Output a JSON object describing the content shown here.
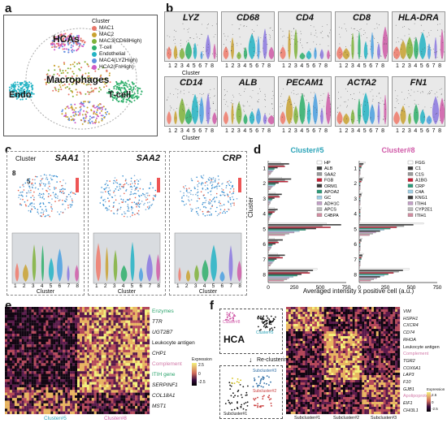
{
  "panels": {
    "a": {
      "label": "a",
      "legend_title": "Cluster",
      "legend": [
        {
          "name": "MAC1",
          "color": "#e8776a"
        },
        {
          "name": "MAC2",
          "color": "#c9a230"
        },
        {
          "name": "MAC3(CD68High)",
          "color": "#7fb23a"
        },
        {
          "name": "T-cell",
          "color": "#2eaf6a"
        },
        {
          "name": "Endothelial",
          "color": "#23b3c4"
        },
        {
          "name": "MAC4(LYZHigh)",
          "color": "#5f8fe0"
        },
        {
          "name": "HCA2(FnHigh)",
          "color": "#d05ac8"
        }
      ],
      "regions": {
        "hcas": "HCAs",
        "macrophages": "Macrophages",
        "endo": "Endo",
        "tcell": "T-cell"
      }
    },
    "b": {
      "label": "b",
      "genes_row1": [
        "LYZ",
        "CD68",
        "CD4",
        "CD8",
        "HLA-DRA"
      ],
      "genes_row2": [
        "CD14",
        "ALB",
        "PECAM1",
        "ACTA2",
        "FN1"
      ],
      "xticks": [
        "1",
        "2",
        "3",
        "4",
        "5",
        "6",
        "7",
        "8"
      ],
      "xlabel": "Cluster"
    },
    "c": {
      "label": "c",
      "genes": [
        "SAA1",
        "SAA2",
        "CRP"
      ],
      "cluster_title": "Cluster",
      "markers": [
        "8",
        "5"
      ],
      "xticks": [
        "1",
        "2",
        "3",
        "4",
        "5",
        "6",
        "7",
        "8"
      ],
      "xlabel": "Cluster"
    },
    "d": {
      "label": "d",
      "ylabel": "Cluster",
      "xlabel": "Averaged intensity x positive cell (a.u.)",
      "colors": [
        "#ffffff",
        "#3a3a3a",
        "#999999",
        "#c91f36",
        "#3a3a3a",
        "#2a9a78",
        "#9fcfe6",
        "#c3a0c7",
        "#bbbbbb",
        "#3b3b3b",
        "#cccccc",
        "#d28ca0"
      ]
    },
    "e": {
      "label": "e",
      "left_col": "Cluster#5",
      "right_col": "Cluster#8",
      "row_labels": [
        {
          "text": "Enzymes",
          "color": "#2aa36b",
          "italic": false
        },
        {
          "text": "TTR",
          "color": "#111",
          "italic": true
        },
        {
          "text": "UGT2B7",
          "color": "#111",
          "italic": true
        },
        {
          "text": "Leukocyte antigen",
          "color": "#111",
          "italic": false
        },
        {
          "text": "CHP1",
          "color": "#111",
          "italic": true
        },
        {
          "text": "Complement",
          "color": "#d27aa8",
          "italic": false
        },
        {
          "text": "ITIH gene",
          "color": "#2aa36b",
          "italic": false
        },
        {
          "text": "SERPINF1",
          "color": "#111",
          "italic": true
        },
        {
          "text": "COL18A1",
          "color": "#111",
          "italic": true
        },
        {
          "text": "MST1",
          "color": "#111",
          "italic": true
        }
      ],
      "legend_title": "Expression",
      "legend_ticks": [
        "2.5",
        "0",
        "-2.5"
      ]
    },
    "f": {
      "label": "f",
      "hca": "HCA",
      "cluster5": "Cluster#5",
      "cluster8": "Cluster#8",
      "arrow_text": "Re-clustering",
      "sub1": "Subcluster#1",
      "sub2": "Subcluster#2",
      "sub3": "Subcluster#3",
      "cols": [
        "Subcluster#1",
        "Subcluster#2",
        "Subcluster#3"
      ],
      "row_labels": [
        {
          "text": "VIM",
          "color": "#111",
          "italic": true
        },
        {
          "text": "HSPH1",
          "color": "#111",
          "italic": true
        },
        {
          "text": "CXCR4",
          "color": "#111",
          "italic": true
        },
        {
          "text": "CD74",
          "color": "#111",
          "italic": true
        },
        {
          "text": "RHOA",
          "color": "#111",
          "italic": true
        },
        {
          "text": "Leukocyte antigen",
          "color": "#111",
          "italic": false
        },
        {
          "text": "Complement",
          "color": "#d27aa8",
          "italic": false
        },
        {
          "text": "TGR2",
          "color": "#111",
          "italic": true
        },
        {
          "text": "COX6A1",
          "color": "#111",
          "italic": true
        },
        {
          "text": "LAP3",
          "color": "#111",
          "italic": true
        },
        {
          "text": "F10",
          "color": "#111",
          "italic": true
        },
        {
          "text": "GJB1",
          "color": "#111",
          "italic": true
        },
        {
          "text": "Apolipoprotein",
          "color": "#d27aa8",
          "italic": false
        },
        {
          "text": "EIF1",
          "color": "#111",
          "italic": true
        },
        {
          "text": "CHI3L1",
          "color": "#111",
          "italic": true
        }
      ],
      "legend_title": "Expression",
      "legend_ticks": [
        "2.5",
        "0",
        "-2.5"
      ]
    }
  },
  "chart_data": [
    {
      "type": "bar",
      "title": "Cluster#5",
      "title_color": "#2aa3b8",
      "orientation": "horizontal",
      "ylabel": "Cluster",
      "xlabel": "Averaged intensity x positive cell (a.u.)",
      "categories": [
        "1",
        "2",
        "3",
        "4",
        "5",
        "6",
        "7",
        "8"
      ],
      "xlim": [
        0,
        750
      ],
      "xticks": [
        "0",
        "250",
        "500",
        "750"
      ],
      "series": [
        {
          "name": "HP",
          "values": [
            120,
            130,
            70,
            60,
            560,
            60,
            90,
            470
          ],
          "color": "#ffffff"
        },
        {
          "name": "ALB",
          "values": [
            200,
            220,
            130,
            90,
            700,
            140,
            160,
            430
          ],
          "color": "#3a3a3a"
        },
        {
          "name": "SAA2",
          "values": [
            150,
            160,
            100,
            70,
            520,
            90,
            110,
            380
          ],
          "color": "#999999"
        },
        {
          "name": "FGB",
          "values": [
            160,
            190,
            110,
            60,
            600,
            100,
            140,
            400
          ],
          "color": "#c91f36"
        },
        {
          "name": "ORM1",
          "values": [
            90,
            100,
            60,
            40,
            460,
            70,
            80,
            320
          ],
          "color": "#3a3a3a"
        },
        {
          "name": "APOA2",
          "values": [
            60,
            70,
            40,
            30,
            360,
            40,
            60,
            280
          ],
          "color": "#2a9a78"
        },
        {
          "name": "GC",
          "values": [
            50,
            60,
            30,
            20,
            300,
            30,
            50,
            240
          ],
          "color": "#9fcfe6"
        },
        {
          "name": "ADH1C",
          "values": [
            40,
            40,
            20,
            20,
            250,
            30,
            40,
            200
          ],
          "color": "#c3a0c7"
        },
        {
          "name": "APCS",
          "values": [
            30,
            30,
            20,
            10,
            200,
            20,
            30,
            180
          ],
          "color": "#bbbbbb"
        },
        {
          "name": "C4BPA",
          "values": [
            20,
            20,
            10,
            10,
            160,
            10,
            20,
            150
          ],
          "color": "#d28ca0"
        }
      ]
    },
    {
      "type": "bar",
      "title": "Cluster#8",
      "title_color": "#d05aa8",
      "orientation": "horizontal",
      "categories": [
        "1",
        "2",
        "3",
        "4",
        "5",
        "6",
        "7",
        "8"
      ],
      "xlim": [
        0,
        750
      ],
      "xticks": [
        "0",
        "250",
        "500",
        "750"
      ],
      "series": [
        {
          "name": "FGG",
          "values": [
            60,
            40,
            30,
            20,
            620,
            30,
            40,
            480
          ],
          "color": "#ffffff"
        },
        {
          "name": "C1",
          "values": [
            40,
            30,
            20,
            10,
            520,
            20,
            30,
            420
          ],
          "color": "#3a3a3a"
        },
        {
          "name": "C1S",
          "values": [
            30,
            30,
            20,
            10,
            430,
            20,
            30,
            380
          ],
          "color": "#999999"
        },
        {
          "name": "A1BG",
          "values": [
            20,
            20,
            10,
            10,
            360,
            10,
            20,
            330
          ],
          "color": "#c91f36"
        },
        {
          "name": "CRP",
          "values": [
            20,
            10,
            10,
            10,
            300,
            10,
            20,
            280
          ],
          "color": "#2a9a78"
        },
        {
          "name": "C4A",
          "values": [
            10,
            10,
            10,
            10,
            240,
            10,
            10,
            240
          ],
          "color": "#9fcfe6"
        },
        {
          "name": "KNG1",
          "values": [
            10,
            10,
            10,
            10,
            200,
            10,
            10,
            200
          ],
          "color": "#3b3b3b"
        },
        {
          "name": "ITIH4",
          "values": [
            10,
            10,
            10,
            10,
            160,
            10,
            10,
            170
          ],
          "color": "#c3a0c7"
        },
        {
          "name": "CYP2E1",
          "values": [
            10,
            10,
            10,
            10,
            130,
            10,
            10,
            140
          ],
          "color": "#bbbbbb"
        },
        {
          "name": "ITIH1",
          "values": [
            10,
            10,
            10,
            10,
            100,
            10,
            10,
            110
          ],
          "color": "#d28ca0"
        }
      ]
    }
  ]
}
